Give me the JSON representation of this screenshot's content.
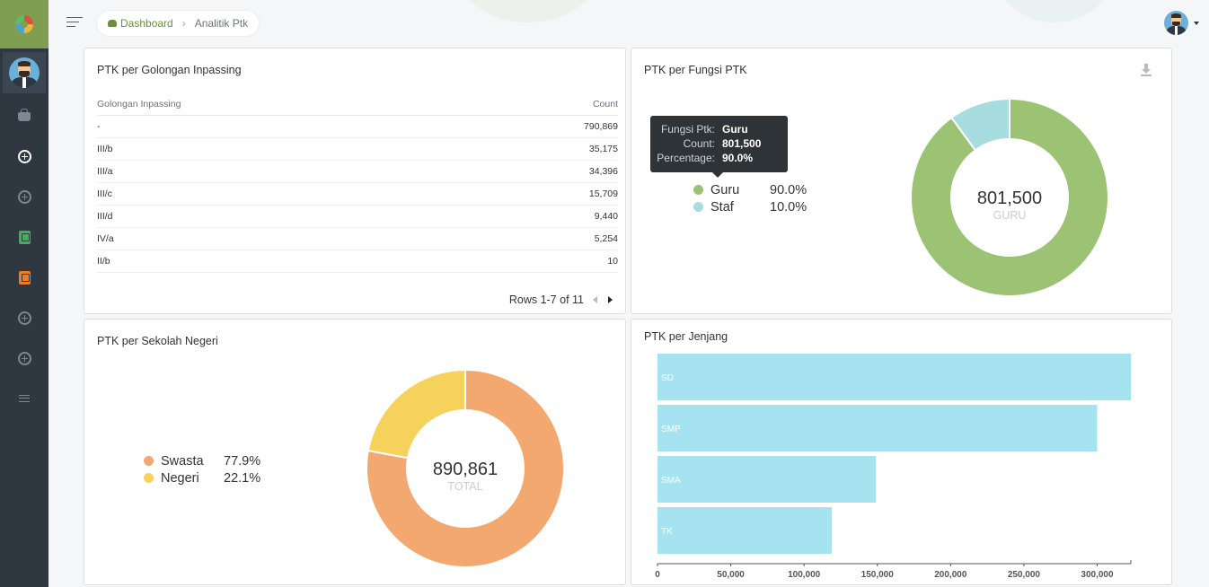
{
  "breadcrumb": {
    "home": "Dashboard",
    "current": "Analitik Ptk"
  },
  "colors": {
    "sidebar": "#2f3740",
    "logo_bg": "#7f9e4f",
    "green": "#9cc273",
    "teal": "#a8dde0",
    "orange": "#f2a86e",
    "yellow": "#f6d25c",
    "bar": "#a6e3f0"
  },
  "sidebar": {
    "items": [
      {
        "icon": "basket-icon"
      },
      {
        "icon": "circle-plus-icon",
        "active": true
      },
      {
        "icon": "circle-plus-icon"
      },
      {
        "icon": "book-icon-green"
      },
      {
        "icon": "book-icon-orange"
      },
      {
        "icon": "circle-plus-icon"
      },
      {
        "icon": "circle-plus-icon"
      },
      {
        "icon": "list-icon"
      }
    ]
  },
  "golongan": {
    "title": "PTK per Golongan Inpassing",
    "col_name": "Golongan Inpassing",
    "col_count": "Count",
    "rows": [
      {
        "name": "-",
        "count": "790,869"
      },
      {
        "name": "III/b",
        "count": "35,175"
      },
      {
        "name": "III/a",
        "count": "34,396"
      },
      {
        "name": "III/c",
        "count": "15,709"
      },
      {
        "name": "III/d",
        "count": "9,440"
      },
      {
        "name": "IV/a",
        "count": "5,254"
      },
      {
        "name": "II/b",
        "count": "10"
      }
    ],
    "pager": "Rows 1-7 of 11"
  },
  "fungsi": {
    "title": "PTK per Fungsi PTK",
    "tooltip": {
      "k1": "Fungsi Ptk:",
      "v1": "Guru",
      "k2": "Count:",
      "v2": "801,500",
      "k3": "Percentage:",
      "v3": "90.0%"
    },
    "legend": [
      {
        "name": "Guru",
        "pct": "90.0%"
      },
      {
        "name": "Staf",
        "pct": "10.0%"
      }
    ],
    "center_value": "801,500",
    "center_label": "GURU"
  },
  "sekolah": {
    "title": "PTK per Sekolah Negeri",
    "legend": [
      {
        "name": "Swasta",
        "pct": "77.9%"
      },
      {
        "name": "Negeri",
        "pct": "22.1%"
      }
    ],
    "center_value": "890,861",
    "center_label": "TOTAL"
  },
  "jenjang": {
    "title": "PTK per Jenjang"
  },
  "chart_data": [
    {
      "type": "pie",
      "title": "PTK per Fungsi PTK",
      "categories": [
        "Guru",
        "Staf"
      ],
      "values": [
        90.0,
        10.0
      ],
      "colors": [
        "#9cc273",
        "#a8dde0"
      ],
      "center_value": "801,500",
      "center_label": "GURU"
    },
    {
      "type": "pie",
      "title": "PTK per Sekolah Negeri",
      "categories": [
        "Swasta",
        "Negeri"
      ],
      "values": [
        77.9,
        22.1
      ],
      "colors": [
        "#f2a86e",
        "#f6d25c"
      ],
      "center_value": "890,861",
      "center_label": "TOTAL"
    },
    {
      "type": "bar",
      "title": "PTK per Jenjang",
      "orientation": "horizontal",
      "categories": [
        "SD",
        "SMP",
        "SMA",
        "TK"
      ],
      "values": [
        323000,
        300000,
        149000,
        119000
      ],
      "xlim": [
        0,
        323000
      ],
      "xticks": [
        0,
        50000,
        100000,
        150000,
        200000,
        250000,
        300000
      ],
      "xtick_labels": [
        "0",
        "50,000",
        "100,000",
        "150,000",
        "200,000",
        "250,000",
        "300,000"
      ],
      "color": "#a6e3f0"
    }
  ]
}
